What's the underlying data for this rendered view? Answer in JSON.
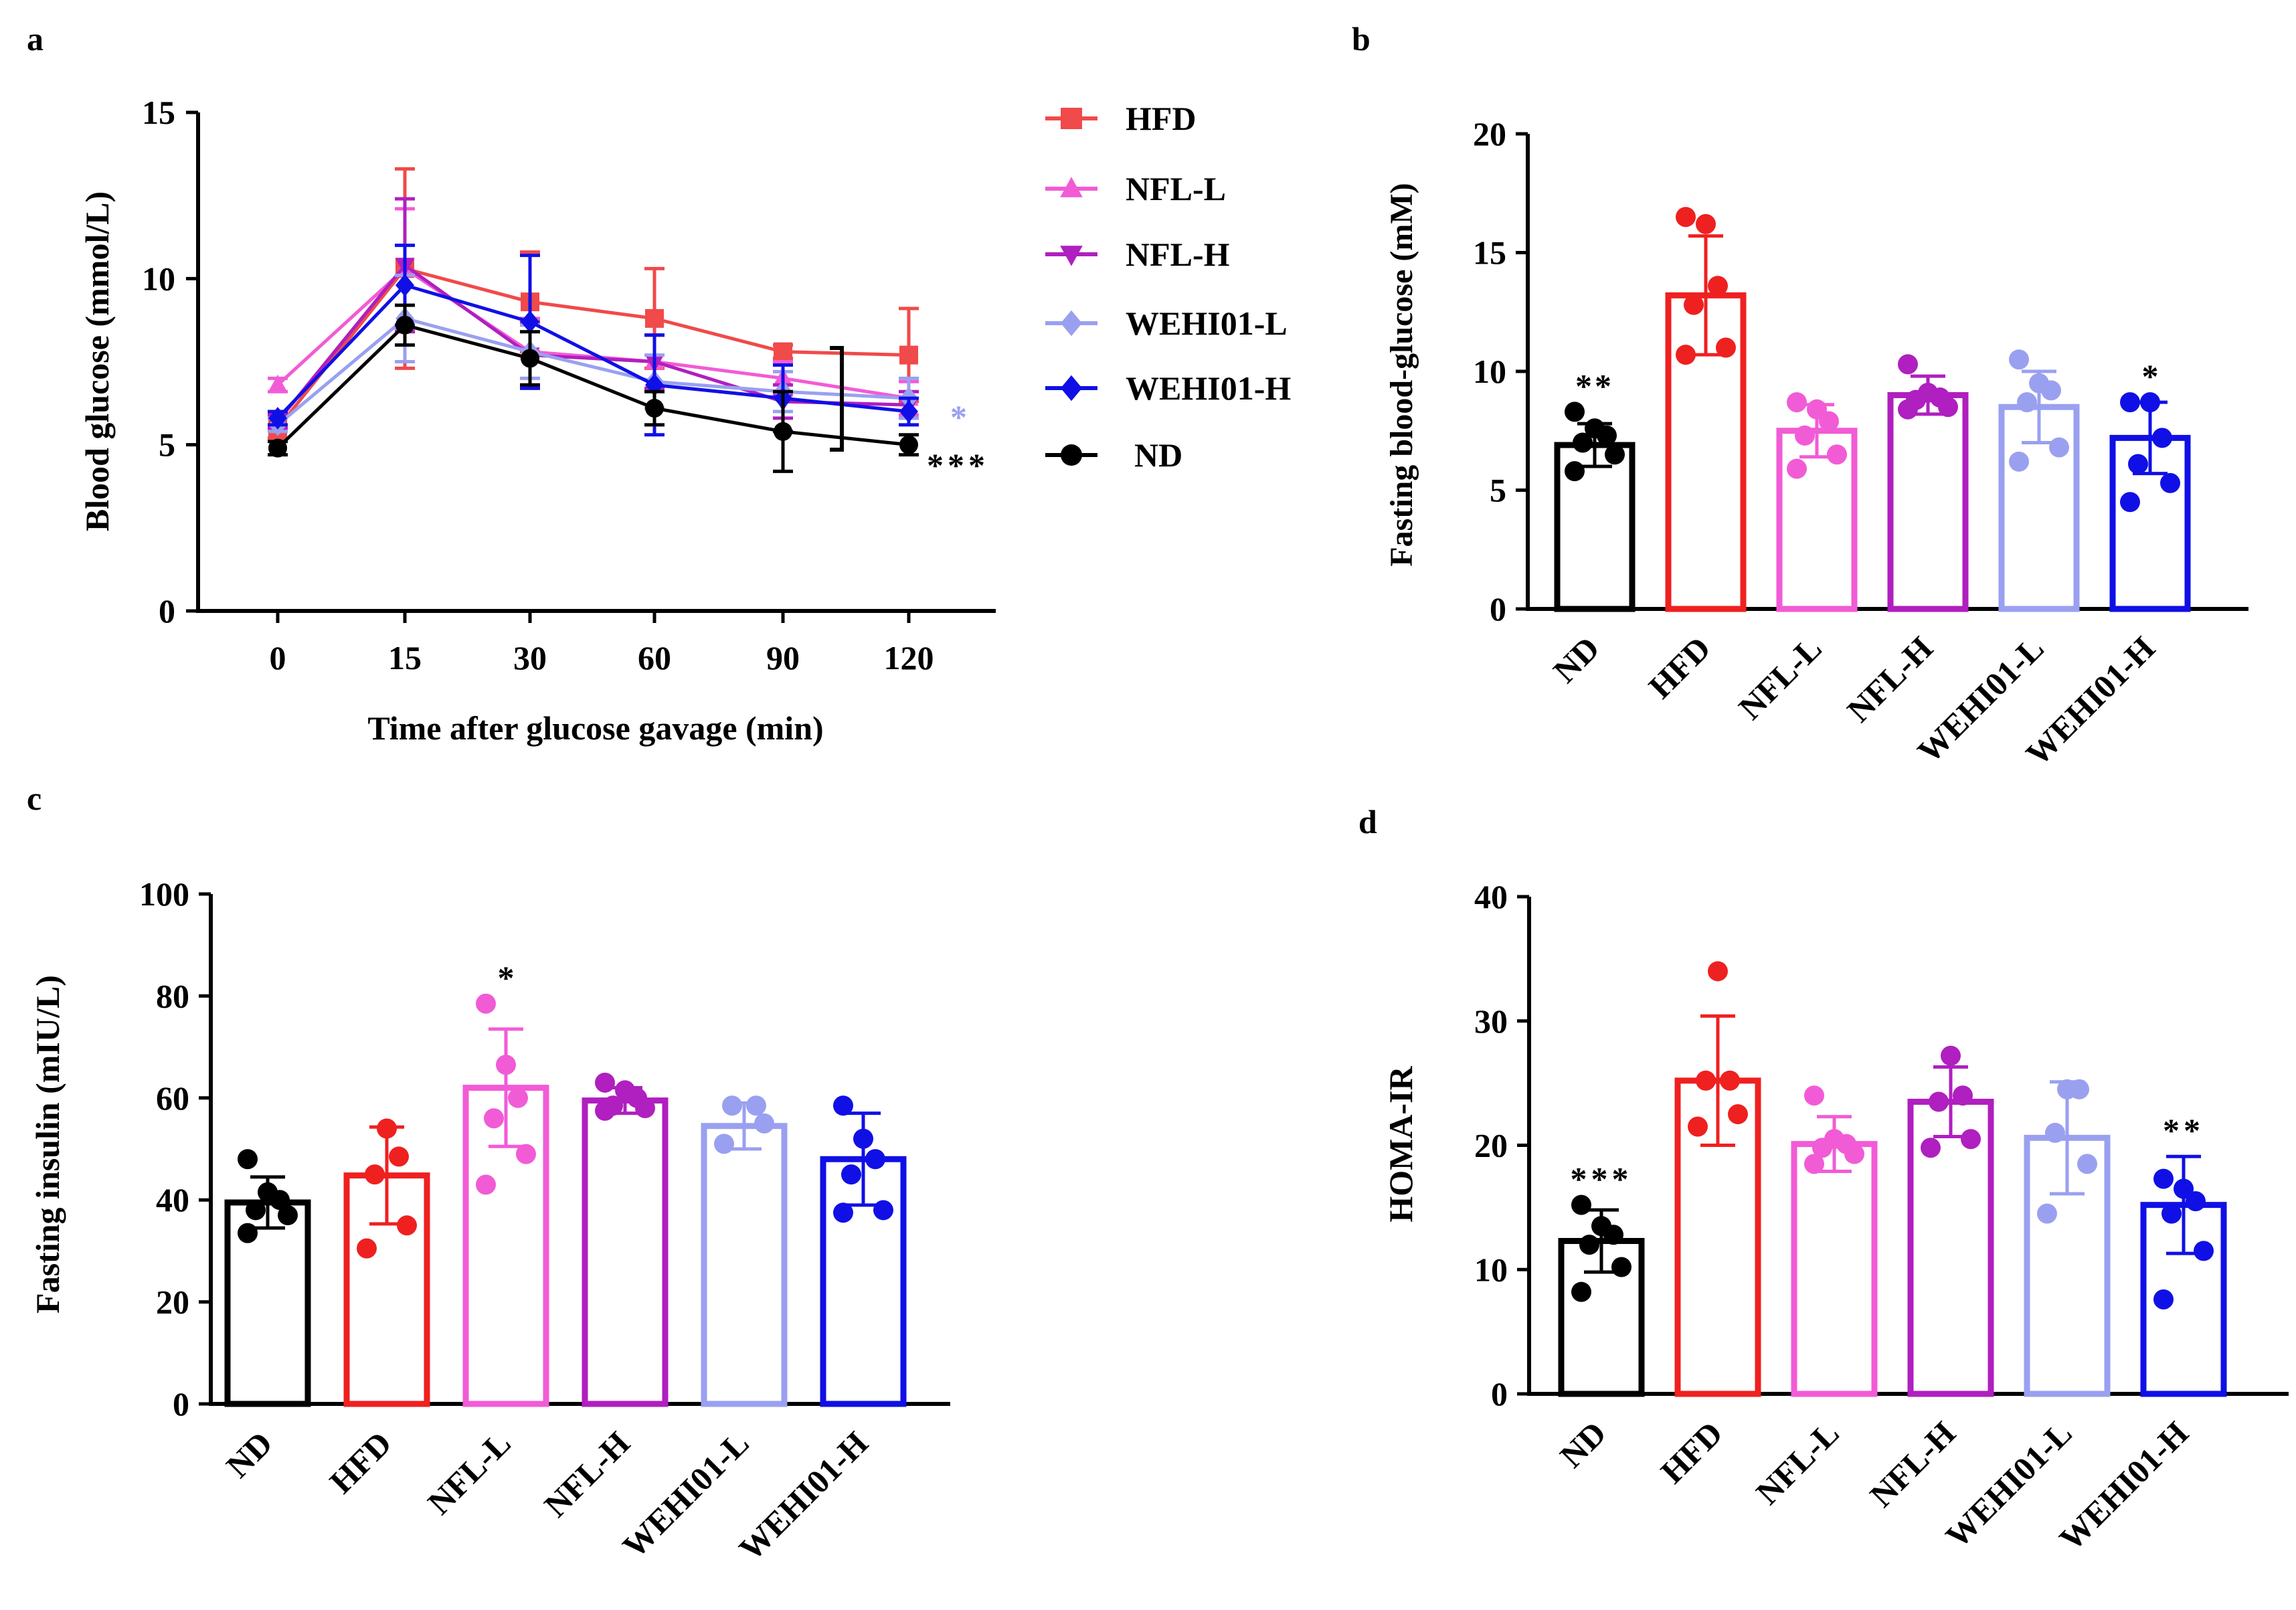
{
  "colors": {
    "ND": "#000000",
    "HFD": "#ef2020",
    "NFL-L": "#f25bd6",
    "NFL-H": "#b01fbf",
    "WEHI01-L": "#9aa0f0",
    "WEHI01-H": "#1010e6",
    "HFD_line": "#f04a4a"
  },
  "chart_data": [
    {
      "id": "a",
      "panel_label": "a",
      "type": "line",
      "xlabel": "Time after glucose gavage (min)",
      "ylabel": "Blood glucose (mmol/L)",
      "x": [
        0,
        15,
        30,
        60,
        90,
        120
      ],
      "x_tick_labels": [
        "0",
        "15",
        "30",
        "60",
        "90",
        "120"
      ],
      "ylim": [
        0,
        15
      ],
      "y_ticks": [
        0,
        5,
        10,
        15
      ],
      "legend": "right",
      "series": [
        {
          "name": "HFD",
          "marker": "square",
          "values": [
            5.5,
            10.3,
            9.3,
            8.8,
            7.8,
            7.7
          ],
          "errors": [
            0.3,
            3.0,
            1.5,
            1.5,
            0.2,
            1.4
          ]
        },
        {
          "name": "NFL-L",
          "marker": "triangle-up",
          "values": [
            6.8,
            10.3,
            7.8,
            7.5,
            7.0,
            6.4
          ],
          "errors": [
            0.2,
            1.8,
            1.0,
            0.8,
            0.5,
            0.5
          ]
        },
        {
          "name": "NFL-H",
          "marker": "triangle-down",
          "values": [
            5.7,
            10.4,
            7.7,
            7.5,
            6.3,
            6.2
          ],
          "errors": [
            0.2,
            2.0,
            1.0,
            0.8,
            0.5,
            0.4
          ]
        },
        {
          "name": "WEHI01-L",
          "marker": "diamond",
          "values": [
            5.6,
            8.8,
            7.8,
            6.9,
            6.6,
            6.4
          ],
          "errors": [
            0.2,
            1.3,
            0.8,
            0.8,
            0.6,
            0.6
          ]
        },
        {
          "name": "WEHI01-H",
          "marker": "diamond",
          "values": [
            5.8,
            9.8,
            8.7,
            6.8,
            6.4,
            6.0
          ],
          "errors": [
            0.2,
            1.2,
            2.0,
            1.5,
            1.0,
            0.4
          ]
        },
        {
          "name": "ND",
          "marker": "circle",
          "values": [
            4.9,
            8.6,
            7.6,
            6.1,
            5.4,
            5.0
          ],
          "errors": [
            0.2,
            0.6,
            0.8,
            0.5,
            1.2,
            0.3
          ]
        }
      ],
      "annotations": [
        {
          "text": "*",
          "series": "WEHI01-L",
          "x": 120,
          "y": 6.0
        },
        {
          "text": "***",
          "series": "ND",
          "x": 120,
          "y": 4.6
        }
      ]
    },
    {
      "id": "b",
      "panel_label": "b",
      "type": "bar",
      "ylabel": "Fasting blood-glucose (mM)",
      "categories": [
        "ND",
        "HFD",
        "NFL-L",
        "NFL-H",
        "WEHI01-L",
        "WEHI01-H"
      ],
      "values": [
        6.9,
        13.2,
        7.5,
        9.0,
        8.5,
        7.2
      ],
      "errors": [
        0.9,
        2.5,
        1.1,
        0.8,
        1.5,
        1.5
      ],
      "points": [
        [
          5.8,
          6.5,
          7.0,
          7.3,
          7.6,
          8.3
        ],
        [
          10.7,
          11.0,
          12.8,
          13.6,
          16.2,
          16.5
        ],
        [
          5.9,
          6.5,
          7.3,
          7.9,
          8.4,
          8.7
        ],
        [
          8.4,
          8.5,
          8.8,
          8.9,
          9.1,
          10.3
        ],
        [
          6.2,
          6.8,
          8.7,
          9.2,
          9.5,
          10.5
        ],
        [
          4.5,
          5.3,
          6.1,
          7.2,
          8.7,
          8.7
        ]
      ],
      "ylim": [
        0,
        20
      ],
      "y_ticks": [
        0,
        5,
        10,
        15,
        20
      ],
      "annotations": [
        {
          "category": "ND",
          "text": "**"
        },
        {
          "category": "WEHI01-H",
          "text": "*"
        }
      ]
    },
    {
      "id": "c",
      "panel_label": "c",
      "type": "bar",
      "ylabel": "Fasting insulin (mIU/L)",
      "categories": [
        "ND",
        "HFD",
        "NFL-L",
        "NFL-H",
        "WEHI01-L",
        "WEHI01-H"
      ],
      "values": [
        39.5,
        44.8,
        62.0,
        59.5,
        54.5,
        48.0
      ],
      "errors": [
        5.0,
        9.5,
        11.5,
        2.5,
        4.5,
        9.0
      ],
      "points": [
        [
          33.5,
          37.0,
          38.0,
          40.0,
          41.5,
          48.0
        ],
        [
          30.5,
          35.0,
          45.0,
          48.5,
          54.0
        ],
        [
          43.0,
          49.0,
          56.0,
          60.0,
          66.5,
          78.5
        ],
        [
          57.5,
          58.0,
          58.5,
          60.0,
          61.5,
          63.0
        ],
        [
          51.0,
          55.0,
          58.5,
          58.5
        ],
        [
          37.5,
          38.0,
          45.0,
          48.0,
          52.0,
          58.5
        ]
      ],
      "ylim": [
        0,
        100
      ],
      "y_ticks": [
        0,
        20,
        40,
        60,
        80,
        100
      ],
      "annotations": [
        {
          "category": "NFL-L",
          "text": "*"
        }
      ]
    },
    {
      "id": "d",
      "panel_label": "d",
      "type": "bar",
      "ylabel": "HOMA-IR",
      "categories": [
        "ND",
        "HFD",
        "NFL-L",
        "NFL-H",
        "WEHI01-L",
        "WEHI01-H"
      ],
      "values": [
        12.3,
        25.2,
        20.1,
        23.5,
        20.6,
        15.2
      ],
      "errors": [
        2.5,
        5.2,
        2.2,
        2.8,
        4.5,
        3.9
      ],
      "points": [
        [
          8.2,
          10.2,
          12.0,
          12.8,
          13.5,
          15.2
        ],
        [
          21.5,
          22.5,
          25.2,
          25.2,
          34.0
        ],
        [
          18.5,
          19.3,
          19.8,
          20.1,
          20.5,
          24.0
        ],
        [
          19.8,
          20.5,
          23.5,
          24.0,
          27.2
        ],
        [
          14.5,
          18.5,
          21.0,
          24.5,
          24.5
        ],
        [
          7.6,
          11.5,
          14.5,
          15.5,
          16.5,
          17.3
        ]
      ],
      "ylim": [
        0,
        40
      ],
      "y_ticks": [
        0,
        10,
        20,
        30,
        40
      ],
      "annotations": [
        {
          "category": "ND",
          "text": "***"
        },
        {
          "category": "WEHI01-H",
          "text": "**"
        }
      ]
    }
  ]
}
